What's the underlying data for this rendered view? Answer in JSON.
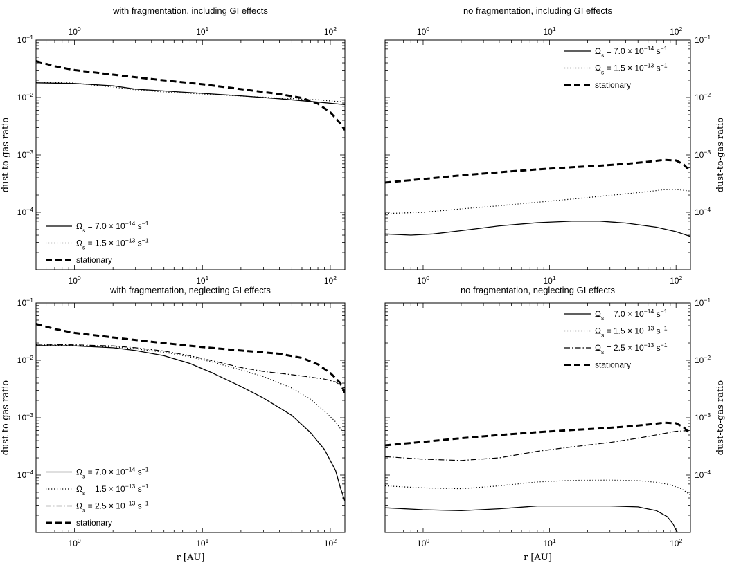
{
  "chart_data": [
    {
      "type": "line",
      "title": "with fragmentation, including GI effects",
      "xscale": "log",
      "yscale": "log",
      "xlim": [
        0.5,
        130
      ],
      "ylim": [
        1e-05,
        0.1
      ],
      "xlabel": "",
      "ylabel": "dust-to-gas ratio",
      "x_ticks_bottom": [
        "10^0",
        "10^1",
        "10^2"
      ],
      "x_ticks_top": [
        "10^0",
        "10^1",
        "10^2"
      ],
      "y_tick_side": "left",
      "y_ticks": [
        "10^-4",
        "10^-3",
        "10^-2",
        "10^-1"
      ],
      "legend_position": "bottom-left",
      "series": [
        {
          "name": "Ω_s = 7.0 × 10^-14 s^-1",
          "style": "solid",
          "x": [
            0.5,
            1,
            2,
            3,
            5,
            10,
            20,
            40,
            80,
            130
          ],
          "y": [
            0.018,
            0.0175,
            0.016,
            0.014,
            0.013,
            0.0118,
            0.0107,
            0.0095,
            0.0083,
            0.0075
          ]
        },
        {
          "name": "Ω_s = 1.5 × 10^-13 s^-1",
          "style": "dotted",
          "x": [
            0.5,
            1,
            2,
            3,
            5,
            10,
            20,
            40,
            80,
            130
          ],
          "y": [
            0.0185,
            0.0178,
            0.0152,
            0.0136,
            0.0125,
            0.0115,
            0.0106,
            0.0098,
            0.0091,
            0.0083
          ]
        },
        {
          "name": "stationary",
          "style": "dashed",
          "x": [
            0.5,
            0.7,
            1,
            2,
            4,
            10,
            20,
            40,
            60,
            80,
            100,
            120,
            130
          ],
          "y": [
            0.043,
            0.035,
            0.03,
            0.025,
            0.021,
            0.017,
            0.014,
            0.0115,
            0.0098,
            0.0078,
            0.0055,
            0.0035,
            0.0027
          ]
        }
      ]
    },
    {
      "type": "line",
      "title": "no fragmentation, including GI effects",
      "xscale": "log",
      "yscale": "log",
      "xlim": [
        0.5,
        130
      ],
      "ylim": [
        1e-05,
        0.1
      ],
      "xlabel": "",
      "ylabel": "dust-to-gas ratio",
      "x_ticks_bottom": [
        "10^0",
        "10^1",
        "10^2"
      ],
      "x_ticks_top": [
        "10^0",
        "10^1",
        "10^2"
      ],
      "y_tick_side": "right",
      "y_ticks": [
        "10^-4",
        "10^-3",
        "10^-2",
        "10^-1"
      ],
      "legend_position": "top-right",
      "series": [
        {
          "name": "Ω_s = 7.0 × 10^-14 s^-1",
          "style": "solid",
          "x": [
            0.5,
            0.8,
            1.2,
            2,
            4,
            8,
            15,
            25,
            40,
            70,
            100,
            130
          ],
          "y": [
            4.2e-05,
            4e-05,
            4.2e-05,
            4.8e-05,
            5.8e-05,
            6.6e-05,
            7e-05,
            7e-05,
            6.5e-05,
            5.5e-05,
            4.6e-05,
            3.8e-05
          ]
        },
        {
          "name": "Ω_s = 1.5 × 10^-13 s^-1",
          "style": "dotted",
          "x": [
            0.5,
            1,
            2,
            4,
            8,
            15,
            25,
            40,
            60,
            80,
            100,
            130
          ],
          "y": [
            9.5e-05,
            0.0001,
            0.000115,
            0.00013,
            0.00015,
            0.00017,
            0.00019,
            0.00021,
            0.00023,
            0.000248,
            0.00025,
            0.000235
          ]
        },
        {
          "name": "stationary",
          "style": "dashed",
          "x": [
            0.5,
            1,
            2,
            4,
            8,
            15,
            25,
            40,
            60,
            80,
            100,
            115,
            130
          ],
          "y": [
            0.00033,
            0.00038,
            0.00044,
            0.0005,
            0.00056,
            0.00061,
            0.00065,
            0.0007,
            0.00076,
            0.00082,
            0.0008,
            0.00068,
            0.00052
          ]
        }
      ]
    },
    {
      "type": "line",
      "title": "with fragmentation, neglecting GI effects",
      "xscale": "log",
      "yscale": "log",
      "xlim": [
        0.5,
        130
      ],
      "ylim": [
        1e-05,
        0.1
      ],
      "xlabel": "r [AU]",
      "ylabel": "dust-to-gas ratio",
      "x_ticks_bottom": [
        "10^0",
        "10^1",
        "10^2"
      ],
      "y_tick_side": "left",
      "y_ticks": [
        "10^-4",
        "10^-3",
        "10^-2",
        "10^-1"
      ],
      "legend_position": "bottom-left",
      "series": [
        {
          "name": "Ω_s = 7.0 × 10^-14 s^-1",
          "style": "solid",
          "x": [
            0.5,
            1,
            2,
            3,
            5,
            8,
            12,
            20,
            30,
            50,
            70,
            90,
            110,
            120,
            130
          ],
          "y": [
            0.018,
            0.0178,
            0.0165,
            0.0148,
            0.012,
            0.0088,
            0.006,
            0.0035,
            0.0022,
            0.0011,
            0.00055,
            0.00028,
            0.00012,
            6e-05,
            3.5e-05
          ]
        },
        {
          "name": "Ω_s = 1.5 × 10^-13 s^-1",
          "style": "dotted",
          "x": [
            0.5,
            1,
            2,
            3,
            5,
            8,
            12,
            20,
            30,
            50,
            70,
            90,
            110,
            130
          ],
          "y": [
            0.0185,
            0.0182,
            0.0172,
            0.0158,
            0.0138,
            0.0115,
            0.0093,
            0.0068,
            0.0052,
            0.0033,
            0.0021,
            0.0013,
            0.00085,
            0.0005
          ]
        },
        {
          "name": "Ω_s = 2.5 × 10^-13 s^-1",
          "style": "dashdot",
          "x": [
            0.5,
            1,
            2,
            3,
            5,
            8,
            12,
            20,
            30,
            50,
            70,
            90,
            110,
            130
          ],
          "y": [
            0.019,
            0.0185,
            0.0178,
            0.0165,
            0.0145,
            0.012,
            0.0098,
            0.0075,
            0.0064,
            0.0056,
            0.0051,
            0.0047,
            0.0042,
            0.0033
          ]
        },
        {
          "name": "stationary",
          "style": "dashed",
          "x": [
            0.5,
            0.7,
            1,
            2,
            4,
            10,
            20,
            40,
            60,
            80,
            100,
            120,
            130
          ],
          "y": [
            0.043,
            0.035,
            0.03,
            0.025,
            0.021,
            0.017,
            0.0148,
            0.013,
            0.011,
            0.0085,
            0.006,
            0.004,
            0.0027
          ]
        }
      ]
    },
    {
      "type": "line",
      "title": "no fragmentation, neglecting GI effects",
      "xscale": "log",
      "yscale": "log",
      "xlim": [
        0.5,
        130
      ],
      "ylim": [
        1e-05,
        0.1
      ],
      "xlabel": "r [AU]",
      "ylabel": "dust-to-gas ratio",
      "x_ticks_bottom": [
        "10^0",
        "10^1",
        "10^2"
      ],
      "y_tick_side": "right",
      "y_ticks": [
        "10^-4",
        "10^-3",
        "10^-2",
        "10^-1"
      ],
      "legend_position": "top-right",
      "series": [
        {
          "name": "Ω_s = 7.0 × 10^-14 s^-1",
          "style": "solid",
          "x": [
            0.5,
            1,
            2,
            4,
            8,
            15,
            30,
            50,
            70,
            85,
            95,
            100,
            103
          ],
          "y": [
            2.7e-05,
            2.5e-05,
            2.4e-05,
            2.6e-05,
            2.9e-05,
            2.9e-05,
            2.9e-05,
            2.8e-05,
            2.4e-05,
            1.9e-05,
            1.4e-05,
            1.1e-05,
            1e-05
          ]
        },
        {
          "name": "Ω_s = 1.5 × 10^-13 s^-1",
          "style": "dotted",
          "x": [
            0.5,
            1,
            2,
            4,
            8,
            15,
            30,
            50,
            70,
            90,
            110,
            130
          ],
          "y": [
            6.5e-05,
            6e-05,
            5.8e-05,
            6.5e-05,
            7.6e-05,
            8.1e-05,
            8.2e-05,
            8e-05,
            7.5e-05,
            6.8e-05,
            5.8e-05,
            4.5e-05
          ]
        },
        {
          "name": "Ω_s = 2.5 × 10^-13 s^-1",
          "style": "dashdot",
          "x": [
            0.5,
            1,
            2,
            4,
            8,
            15,
            30,
            50,
            80,
            100,
            130
          ],
          "y": [
            0.00021,
            0.00019,
            0.00018,
            0.0002,
            0.00026,
            0.00031,
            0.00037,
            0.00044,
            0.00053,
            0.00058,
            0.0006
          ]
        },
        {
          "name": "stationary",
          "style": "dashed",
          "x": [
            0.5,
            1,
            2,
            4,
            8,
            15,
            25,
            40,
            60,
            80,
            100,
            115,
            130
          ],
          "y": [
            0.00033,
            0.00038,
            0.00044,
            0.0005,
            0.00056,
            0.00061,
            0.00065,
            0.0007,
            0.00076,
            0.00082,
            0.0008,
            0.00068,
            0.00052
          ]
        }
      ]
    }
  ]
}
